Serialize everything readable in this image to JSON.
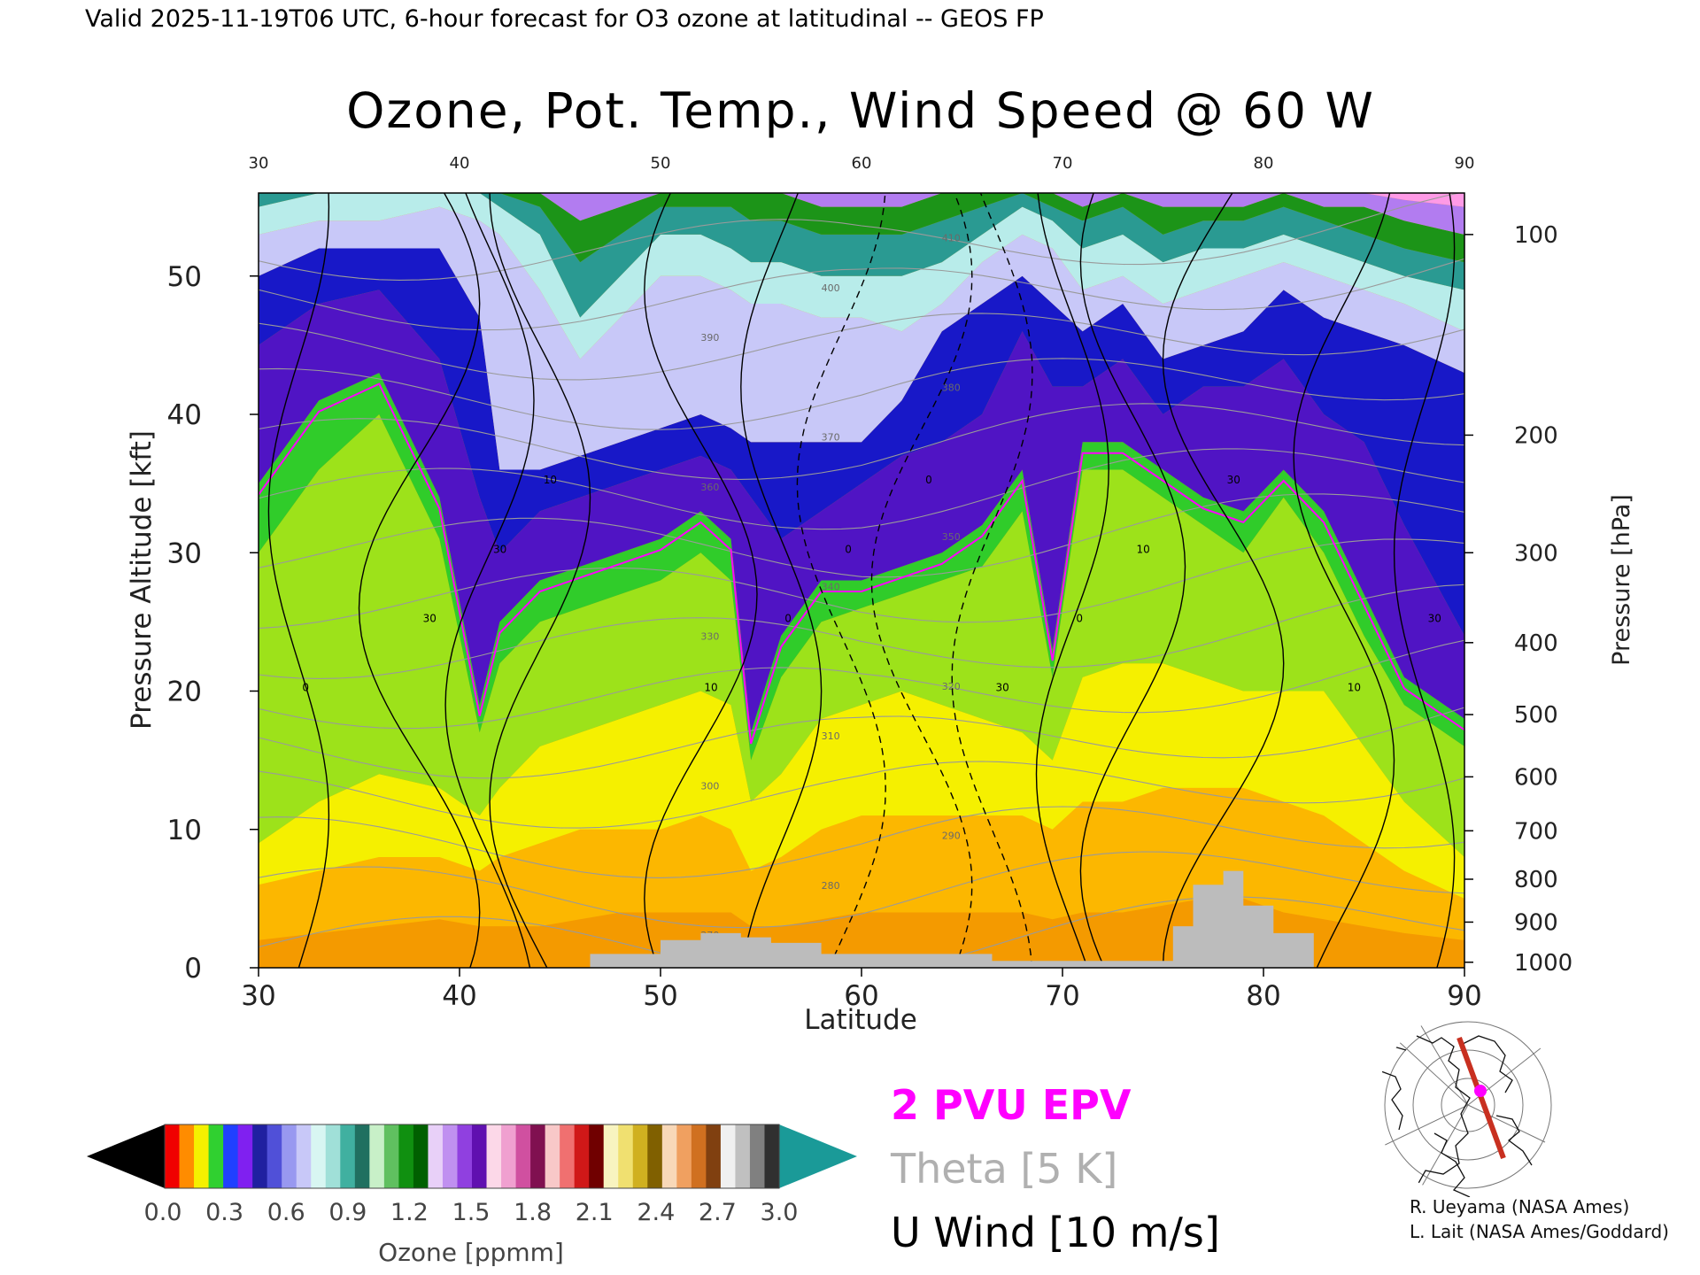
{
  "header": "Valid 2025-11-19T06 UTC, 6-hour forecast for O3 ozone at latitudinal -- GEOS FP",
  "chart_data": {
    "type": "heatmap",
    "title": "Ozone, Pot. Temp., Wind Speed @ 60 W",
    "xlabel": "Latitude",
    "ylabel": "Pressure Altitude [kft]",
    "y2label": "Pressure [hPa]",
    "xlim": [
      30,
      90
    ],
    "ylim": [
      0,
      56
    ],
    "x_ticks": [
      "30",
      "40",
      "50",
      "60",
      "70",
      "80",
      "90"
    ],
    "y_ticks": [
      "0",
      "10",
      "20",
      "30",
      "40",
      "50"
    ],
    "pressure_ticks": [
      {
        "label": "100",
        "kft": 53.0
      },
      {
        "label": "200",
        "kft": 38.5
      },
      {
        "label": "300",
        "kft": 30.0
      },
      {
        "label": "400",
        "kft": 23.5
      },
      {
        "label": "500",
        "kft": 18.3
      },
      {
        "label": "600",
        "kft": 13.8
      },
      {
        "label": "700",
        "kft": 9.9
      },
      {
        "label": "800",
        "kft": 6.4
      },
      {
        "label": "900",
        "kft": 3.3
      },
      {
        "label": "1000",
        "kft": 0.4
      }
    ],
    "ozone_boundaries": [
      {
        "lat": 30,
        "kft": [
          0,
          2.0,
          6.0,
          9.0,
          30.0,
          35.0,
          45.0,
          50.0,
          53.0,
          55.0,
          56.0,
          56.0,
          56.0,
          56.0
        ]
      },
      {
        "lat": 33,
        "kft": [
          0,
          2.5,
          7.0,
          12.0,
          36.0,
          41.0,
          48.0,
          52.0,
          54.0,
          56.0,
          56.0,
          56.0,
          56.0,
          56.0
        ]
      },
      {
        "lat": 36,
        "kft": [
          0,
          3.0,
          8.0,
          14.0,
          40.0,
          43.0,
          49.0,
          52.0,
          54.0,
          56.0,
          56.0,
          56.0,
          56.0,
          56.0
        ]
      },
      {
        "lat": 39,
        "kft": [
          0,
          3.5,
          8.0,
          13.0,
          31.0,
          34.0,
          44.0,
          52.0,
          55.0,
          56.0,
          56.0,
          56.0,
          56.0,
          56.0
        ]
      },
      {
        "lat": 41,
        "kft": [
          0,
          3.0,
          7.0,
          11.0,
          17.0,
          19.0,
          34.0,
          47.0,
          54.0,
          56.0,
          56.0,
          56.0,
          56.0,
          56.0
        ]
      },
      {
        "lat": 42,
        "kft": [
          0,
          3.0,
          8.0,
          13.0,
          22.0,
          25.0,
          30.0,
          36.0,
          53.0,
          55.0,
          56.0,
          56.0,
          56.0,
          56.0
        ]
      },
      {
        "lat": 44,
        "kft": [
          0,
          3.0,
          9.0,
          16.0,
          25.0,
          28.0,
          33.0,
          36.0,
          49.0,
          53.0,
          55.0,
          56.0,
          56.0,
          56.0
        ]
      },
      {
        "lat": 46,
        "kft": [
          0,
          3.5,
          10.0,
          17.0,
          26.0,
          29.0,
          34.0,
          37.0,
          44.0,
          47.0,
          51.0,
          54.0,
          56.0,
          56.0
        ]
      },
      {
        "lat": 48,
        "kft": [
          0,
          4.0,
          10.0,
          18.0,
          27.0,
          30.0,
          35.0,
          38.0,
          47.0,
          50.0,
          53.0,
          55.0,
          56.0,
          56.0
        ]
      },
      {
        "lat": 50,
        "kft": [
          0,
          4.0,
          10.0,
          19.0,
          28.0,
          31.0,
          36.0,
          39.0,
          50.0,
          53.0,
          55.0,
          56.0,
          56.0,
          56.0
        ]
      },
      {
        "lat": 52,
        "kft": [
          0,
          4.0,
          11.0,
          20.0,
          30.0,
          33.0,
          37.0,
          40.0,
          50.0,
          53.0,
          55.0,
          56.0,
          56.0,
          56.0
        ]
      },
      {
        "lat": 53.5,
        "kft": [
          0,
          4.0,
          10.0,
          19.0,
          28.0,
          31.0,
          36.0,
          39.0,
          49.0,
          52.0,
          55.0,
          56.0,
          56.0,
          56.0
        ]
      },
      {
        "lat": 54.5,
        "kft": [
          0,
          3.0,
          7.0,
          12.0,
          15.0,
          17.0,
          34.0,
          38.0,
          48.0,
          51.0,
          54.0,
          56.0,
          56.0,
          56.0
        ]
      },
      {
        "lat": 56,
        "kft": [
          0,
          3.0,
          8.0,
          14.0,
          21.0,
          24.0,
          31.0,
          38.0,
          48.0,
          51.0,
          54.0,
          56.0,
          56.0,
          56.0
        ]
      },
      {
        "lat": 58,
        "kft": [
          0,
          3.5,
          10.0,
          18.0,
          25.0,
          28.0,
          33.0,
          38.0,
          47.0,
          50.0,
          53.0,
          55.0,
          56.0,
          56.0
        ]
      },
      {
        "lat": 60,
        "kft": [
          0,
          4.0,
          11.0,
          19.0,
          26.0,
          28.0,
          35.0,
          38.0,
          47.0,
          50.0,
          53.0,
          55.0,
          56.0,
          56.0
        ]
      },
      {
        "lat": 62,
        "kft": [
          0,
          4.0,
          11.0,
          20.0,
          27.0,
          29.0,
          37.0,
          41.0,
          46.0,
          50.0,
          53.0,
          55.0,
          56.0,
          56.0
        ]
      },
      {
        "lat": 64,
        "kft": [
          0,
          4.0,
          11.0,
          19.0,
          28.0,
          30.0,
          38.0,
          46.0,
          48.0,
          51.0,
          54.0,
          56.0,
          56.0,
          56.0
        ]
      },
      {
        "lat": 66,
        "kft": [
          0,
          4.0,
          11.0,
          18.0,
          29.0,
          32.0,
          40.0,
          48.0,
          51.0,
          53.0,
          55.0,
          56.0,
          56.0,
          56.0
        ]
      },
      {
        "lat": 68,
        "kft": [
          0,
          4.0,
          11.0,
          17.0,
          33.0,
          36.0,
          46.0,
          50.0,
          53.0,
          55.0,
          56.0,
          56.0,
          56.0,
          56.0
        ]
      },
      {
        "lat": 69.5,
        "kft": [
          0,
          3.5,
          10.0,
          15.0,
          21.0,
          23.0,
          42.0,
          48.0,
          52.0,
          54.0,
          55.0,
          56.0,
          56.0,
          56.0
        ]
      },
      {
        "lat": 71,
        "kft": [
          0,
          4.0,
          12.0,
          21.0,
          36.0,
          38.0,
          42.0,
          46.0,
          49.0,
          52.0,
          54.0,
          55.0,
          56.0,
          56.0
        ]
      },
      {
        "lat": 73,
        "kft": [
          0,
          4.0,
          12.0,
          22.0,
          36.0,
          38.0,
          44.0,
          48.0,
          50.0,
          53.0,
          55.0,
          56.0,
          56.0,
          56.0
        ]
      },
      {
        "lat": 75,
        "kft": [
          0,
          4.5,
          13.0,
          22.0,
          34.0,
          36.0,
          40.0,
          44.0,
          48.0,
          51.0,
          53.0,
          55.0,
          56.0,
          56.0
        ]
      },
      {
        "lat": 77,
        "kft": [
          0,
          5.0,
          13.0,
          21.0,
          32.0,
          34.0,
          42.0,
          45.0,
          49.0,
          52.0,
          54.0,
          55.0,
          56.0,
          56.0
        ]
      },
      {
        "lat": 79,
        "kft": [
          0,
          5.0,
          13.0,
          20.0,
          30.0,
          33.0,
          42.0,
          46.0,
          50.0,
          52.0,
          54.0,
          55.0,
          56.0,
          56.0
        ]
      },
      {
        "lat": 81,
        "kft": [
          0,
          4.0,
          12.0,
          20.0,
          34.0,
          36.0,
          44.0,
          49.0,
          51.0,
          53.0,
          55.0,
          56.0,
          56.0,
          56.0
        ]
      },
      {
        "lat": 83,
        "kft": [
          0,
          3.5,
          11.0,
          20.0,
          30.0,
          33.0,
          40.0,
          47.0,
          50.0,
          52.0,
          54.0,
          55.0,
          56.0,
          56.0
        ]
      },
      {
        "lat": 85,
        "kft": [
          0,
          3.0,
          9.0,
          16.0,
          24.0,
          27.0,
          38.0,
          46.0,
          49.0,
          51.0,
          53.0,
          55.0,
          56.0,
          56.0
        ]
      },
      {
        "lat": 87,
        "kft": [
          0,
          2.5,
          7.0,
          12.0,
          19.0,
          21.0,
          32.0,
          45.0,
          48.0,
          50.0,
          52.0,
          54.0,
          55.5,
          56.0
        ]
      },
      {
        "lat": 90,
        "kft": [
          0,
          2.0,
          5.0,
          8.0,
          16.0,
          18.0,
          24.0,
          43.0,
          46.0,
          49.0,
          51.0,
          53.0,
          55.0,
          56.0
        ]
      }
    ],
    "ozone_band_colors": [
      "#f49a00",
      "#fcb700",
      "#f5f000",
      "#9de21a",
      "#30cc2a",
      "#5014c4",
      "#1818c8",
      "#c8c8f8",
      "#b8ecea",
      "#2a9a92",
      "#1c9418",
      "#b27cf0",
      "#ff9ae6",
      "#e02030"
    ],
    "theta_levels": [
      "270",
      "280",
      "290",
      "300",
      "310",
      "320",
      "330",
      "340",
      "350",
      "360",
      "370",
      "380",
      "390",
      "400",
      "410"
    ],
    "u_wind_contours": [
      "0",
      "10",
      "20",
      "30"
    ],
    "surface": [
      {
        "lat": 46.5,
        "kft": 0
      },
      {
        "lat": 46.5,
        "kft": 1.0
      },
      {
        "lat": 50,
        "kft": 1.0
      },
      {
        "lat": 50,
        "kft": 2.0
      },
      {
        "lat": 52,
        "kft": 2.0
      },
      {
        "lat": 52,
        "kft": 2.5
      },
      {
        "lat": 54,
        "kft": 2.5
      },
      {
        "lat": 54,
        "kft": 2.2
      },
      {
        "lat": 55.5,
        "kft": 2.2
      },
      {
        "lat": 55.5,
        "kft": 1.8
      },
      {
        "lat": 58,
        "kft": 1.8
      },
      {
        "lat": 58,
        "kft": 1.0
      },
      {
        "lat": 66.5,
        "kft": 1.0
      },
      {
        "lat": 66.5,
        "kft": 0.5
      },
      {
        "lat": 75.5,
        "kft": 0.5
      },
      {
        "lat": 75.5,
        "kft": 3.0
      },
      {
        "lat": 76.5,
        "kft": 3.0
      },
      {
        "lat": 76.5,
        "kft": 6.0
      },
      {
        "lat": 78,
        "kft": 6.0
      },
      {
        "lat": 78,
        "kft": 7.0
      },
      {
        "lat": 79,
        "kft": 7.0
      },
      {
        "lat": 79,
        "kft": 4.5
      },
      {
        "lat": 80.5,
        "kft": 4.5
      },
      {
        "lat": 80.5,
        "kft": 2.5
      },
      {
        "lat": 82.5,
        "kft": 2.5
      },
      {
        "lat": 82.5,
        "kft": 0
      }
    ],
    "colorbar": {
      "label": "Ozone [ppmm]",
      "ticks": [
        "0.0",
        "0.3",
        "0.6",
        "0.9",
        "1.2",
        "1.5",
        "1.8",
        "2.1",
        "2.4",
        "2.7",
        "3.0"
      ],
      "colors": [
        "#f00000",
        "#ff8c00",
        "#f5f000",
        "#30d030",
        "#2040ff",
        "#8020f0",
        "#2020a0",
        "#5050d8",
        "#9898f0",
        "#c8c8f8",
        "#d8f6f2",
        "#a0e0d8",
        "#40b0a0",
        "#207060",
        "#c8f0c8",
        "#60c060",
        "#109010",
        "#006000",
        "#e8d0f8",
        "#c090f0",
        "#9040e0",
        "#6010b0",
        "#fcd8e8",
        "#f0a0d0",
        "#d050a0",
        "#801050",
        "#f8c8c8",
        "#f07070",
        "#d01818",
        "#700000",
        "#f8f4c0",
        "#f0e070",
        "#d0b020",
        "#806000",
        "#f8d8b8",
        "#f0a060",
        "#d07020",
        "#804010",
        "#f0f0f0",
        "#c0c0c0",
        "#808080",
        "#303030"
      ],
      "under_color": "#000000",
      "over_color": "#1a9a98"
    }
  },
  "legend": {
    "epv": "2 PVU EPV",
    "theta": "Theta [5 K]",
    "uwind": "U Wind [10 m/s]"
  },
  "credits": {
    "line1": "R. Ueyama (NASA Ames)",
    "line2": "L. Lait (NASA Ames/Goddard)"
  },
  "colors": {
    "epv": "#ff00ff",
    "theta_line": "#9a9a9a",
    "uwind": "#000000",
    "surface": "#bcbcbc",
    "track": "#c83020"
  }
}
